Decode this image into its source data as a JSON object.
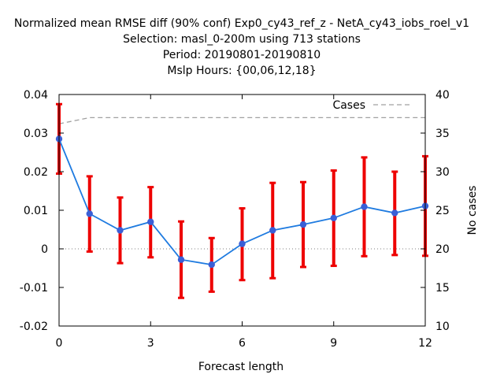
{
  "chart_data": {
    "type": "line",
    "title_lines": [
      "Normalized mean RMSE diff (90% conf) Exp0_cy43_ref_z - NetA_cy43_iobs_roel_v1",
      "Selection: masl_0-200m using   713 stations",
      "Period: 20190801-20190810",
      "Mslp   Hours: {00,06,12,18}"
    ],
    "xlabel": "Forecast length",
    "ylabel": "",
    "y2label": "No cases",
    "xlim": [
      0,
      12
    ],
    "ylim": [
      -0.02,
      0.04
    ],
    "y2lim": [
      10,
      40
    ],
    "x_ticks": [
      0,
      3,
      6,
      9,
      12
    ],
    "y_ticks": [
      -0.02,
      -0.01,
      0,
      0.01,
      0.02,
      0.03,
      0.04
    ],
    "y_tick_labels": [
      "-0.02",
      "-0.01",
      "0",
      "0.01",
      "0.02",
      "0.03",
      "0.04"
    ],
    "y2_ticks": [
      10,
      15,
      20,
      25,
      30,
      35,
      40
    ],
    "grid": false,
    "colors": {
      "line": "#1f7be0",
      "marker": "#3a5fd6",
      "errorbar": "#ee0000",
      "cases": "#a0a0a0"
    },
    "series": [
      {
        "name": "",
        "x": [
          0,
          1,
          2,
          3,
          4,
          5,
          6,
          7,
          8,
          9,
          10,
          11,
          12
        ],
        "y": [
          0.0285,
          0.0091,
          0.0048,
          0.007,
          -0.0028,
          -0.0041,
          0.0013,
          0.0048,
          0.0063,
          0.008,
          0.0109,
          0.0093,
          0.0111
        ],
        "y_low": [
          0.0195,
          -0.0007,
          -0.0037,
          -0.0022,
          -0.0127,
          -0.0111,
          -0.0081,
          -0.0076,
          -0.0047,
          -0.0044,
          -0.0019,
          -0.0016,
          -0.0018
        ],
        "y_high": [
          0.0375,
          0.0188,
          0.0133,
          0.016,
          0.0071,
          0.0028,
          0.0105,
          0.0171,
          0.0173,
          0.0203,
          0.0237,
          0.02,
          0.024
        ]
      },
      {
        "name": "Cases",
        "axis": "y2",
        "x": [
          0,
          1,
          2,
          3,
          4,
          5,
          6,
          7,
          8,
          9,
          10,
          11,
          12
        ],
        "y": [
          36.2,
          37.0,
          37.0,
          37.0,
          37.0,
          37.0,
          37.0,
          37.0,
          37.0,
          37.0,
          37.0,
          37.0,
          37.0
        ]
      }
    ],
    "legend": {
      "position": "top-right",
      "entries": [
        "Cases"
      ]
    }
  }
}
